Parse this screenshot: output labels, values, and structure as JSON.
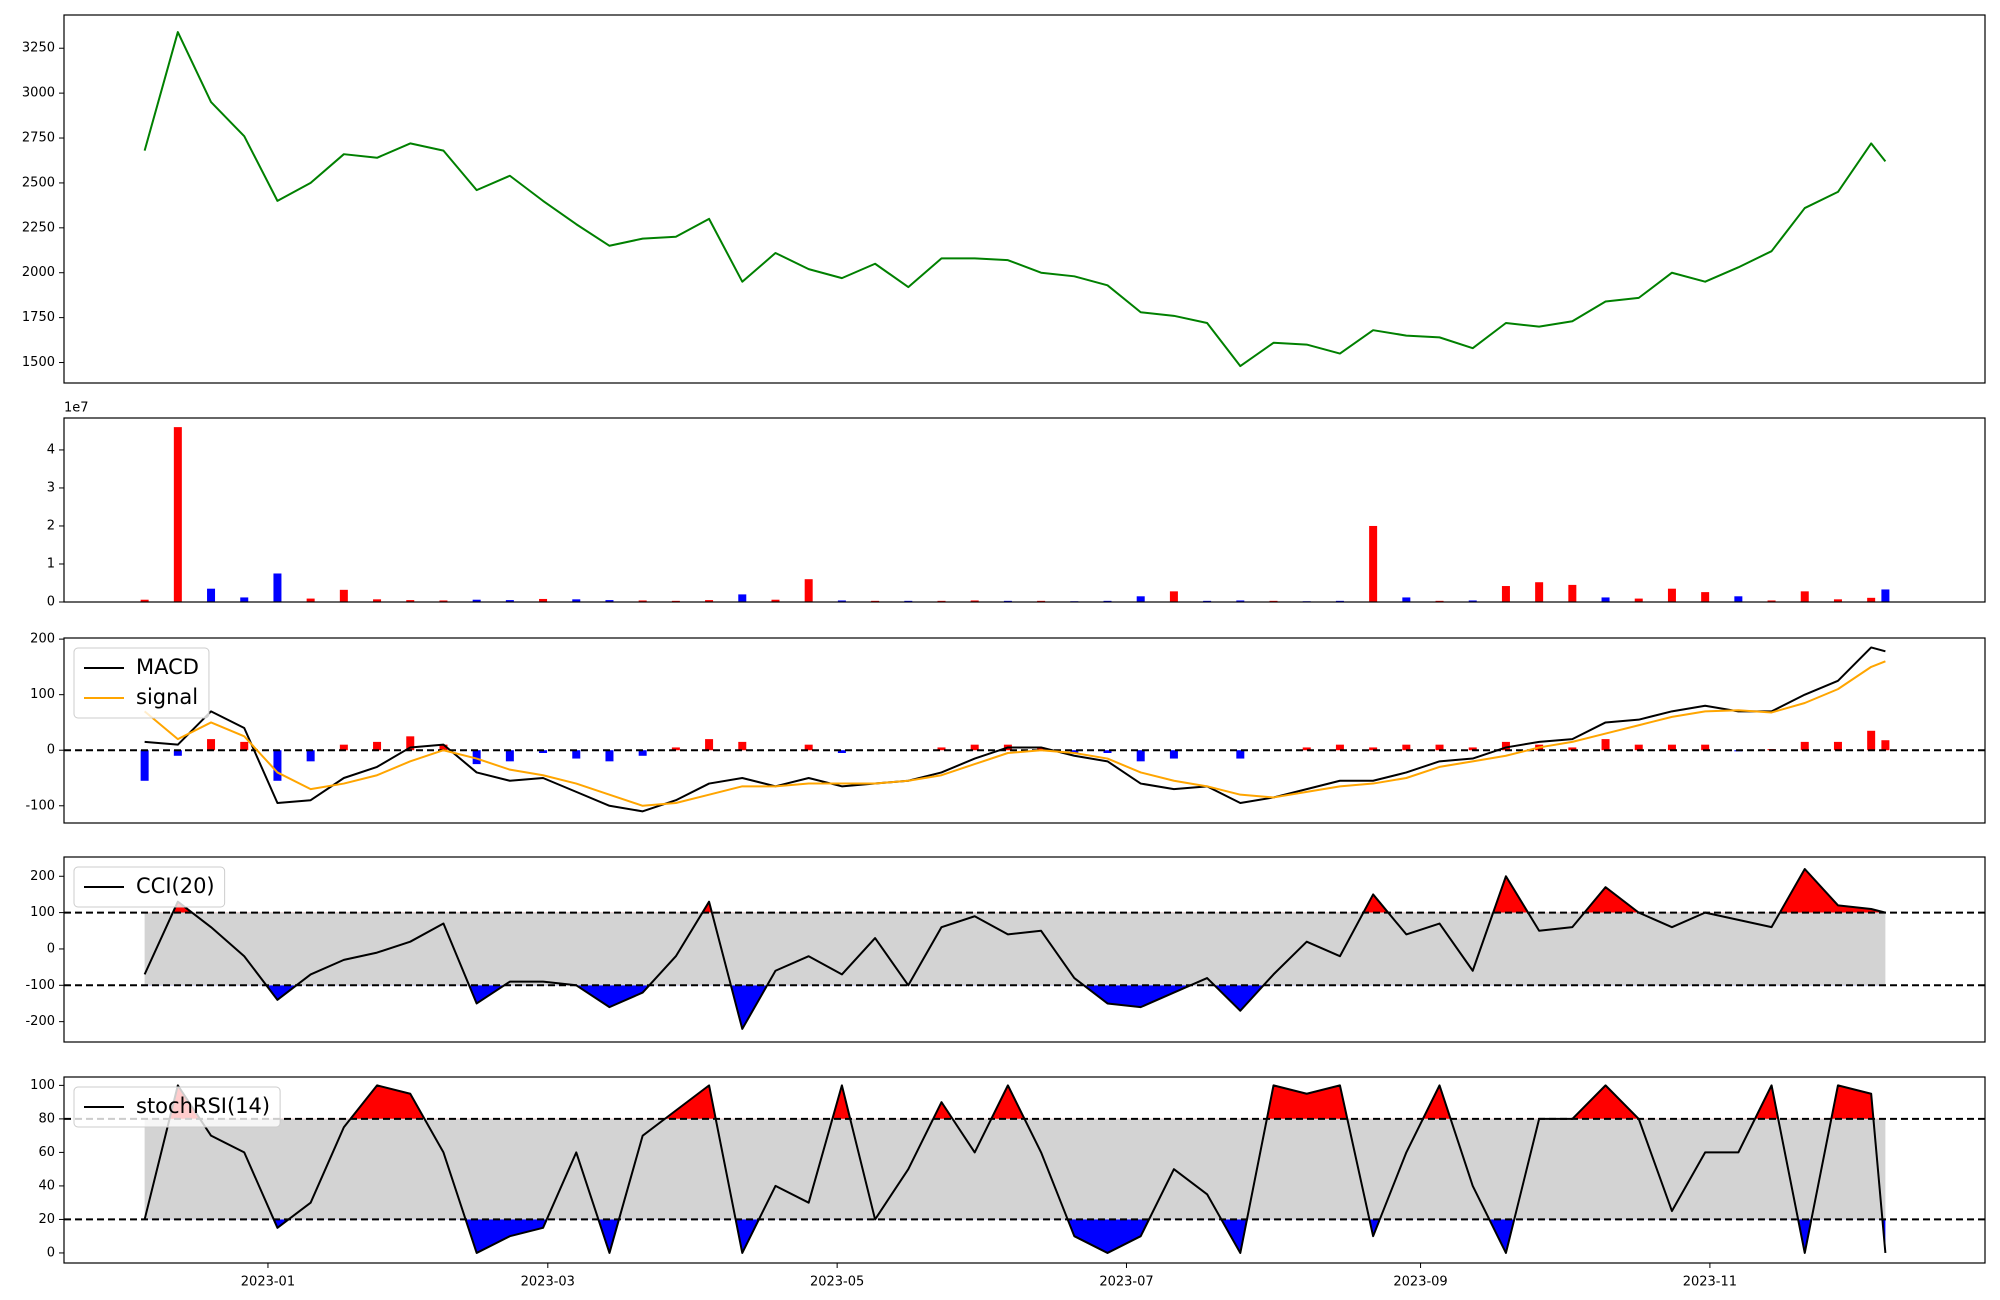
{
  "chart_data": [
    {
      "type": "line",
      "color": "#008000",
      "x": [
        "2022-12-06",
        "2022-12-13",
        "2022-12-20",
        "2022-12-27",
        "2023-01-03",
        "2023-01-10",
        "2023-01-17",
        "2023-01-24",
        "2023-01-31",
        "2023-02-07",
        "2023-02-14",
        "2023-02-21",
        "2023-02-28",
        "2023-03-07",
        "2023-03-14",
        "2023-03-21",
        "2023-03-28",
        "2023-04-04",
        "2023-04-11",
        "2023-04-18",
        "2023-04-25",
        "2023-05-02",
        "2023-05-09",
        "2023-05-16",
        "2023-05-23",
        "2023-05-30",
        "2023-06-06",
        "2023-06-13",
        "2023-06-20",
        "2023-06-27",
        "2023-07-04",
        "2023-07-11",
        "2023-07-18",
        "2023-07-25",
        "2023-08-01",
        "2023-08-08",
        "2023-08-15",
        "2023-08-22",
        "2023-08-29",
        "2023-09-05",
        "2023-09-12",
        "2023-09-19",
        "2023-09-26",
        "2023-10-03",
        "2023-10-10",
        "2023-10-17",
        "2023-10-24",
        "2023-10-31",
        "2023-11-07",
        "2023-11-14",
        "2023-11-21",
        "2023-11-28",
        "2023-12-05",
        "2023-12-08"
      ],
      "values": [
        2680,
        3340,
        2950,
        2760,
        2400,
        2500,
        2660,
        2640,
        2720,
        2680,
        2460,
        2540,
        2400,
        2270,
        2150,
        2190,
        2200,
        2300,
        1950,
        2110,
        2020,
        1970,
        2050,
        1920,
        2080,
        2080,
        2070,
        2000,
        1980,
        1930,
        1780,
        1760,
        1720,
        1480,
        1610,
        1600,
        1550,
        1680,
        1650,
        1640,
        1580,
        1720,
        1700,
        1730,
        1840,
        1860,
        2000,
        1950,
        2030,
        2120,
        2360,
        2450,
        2720,
        2620
      ],
      "xlim": [
        "2022-11-19",
        "2023-12-29"
      ],
      "ylim": [
        1386,
        3435
      ],
      "yticks": [
        1500,
        1750,
        2000,
        2250,
        2500,
        2750,
        3000,
        3250
      ]
    },
    {
      "type": "bar",
      "offset_label": "1e7",
      "x": [
        "2022-12-06",
        "2022-12-13",
        "2022-12-20",
        "2022-12-27",
        "2023-01-03",
        "2023-01-10",
        "2023-01-17",
        "2023-01-24",
        "2023-01-31",
        "2023-02-07",
        "2023-02-14",
        "2023-02-21",
        "2023-02-28",
        "2023-03-07",
        "2023-03-14",
        "2023-03-21",
        "2023-03-28",
        "2023-04-04",
        "2023-04-11",
        "2023-04-18",
        "2023-04-25",
        "2023-05-02",
        "2023-05-09",
        "2023-05-16",
        "2023-05-23",
        "2023-05-30",
        "2023-06-06",
        "2023-06-13",
        "2023-06-20",
        "2023-06-27",
        "2023-07-04",
        "2023-07-11",
        "2023-07-18",
        "2023-07-25",
        "2023-08-01",
        "2023-08-08",
        "2023-08-15",
        "2023-08-22",
        "2023-08-29",
        "2023-09-05",
        "2023-09-12",
        "2023-09-19",
        "2023-09-26",
        "2023-10-03",
        "2023-10-10",
        "2023-10-17",
        "2023-10-24",
        "2023-10-31",
        "2023-11-07",
        "2023-11-14",
        "2023-11-21",
        "2023-11-28",
        "2023-12-05",
        "2023-12-08"
      ],
      "values": [
        600000,
        46000000,
        3500000,
        1200000,
        7500000,
        900000,
        3200000,
        700000,
        500000,
        400000,
        600000,
        500000,
        800000,
        700000,
        500000,
        400000,
        300000,
        500000,
        2000000,
        600000,
        6000000,
        400000,
        300000,
        300000,
        300000,
        400000,
        300000,
        300000,
        200000,
        300000,
        1500000,
        2800000,
        300000,
        400000,
        300000,
        200000,
        300000,
        20000000,
        1200000,
        300000,
        400000,
        4200000,
        5200000,
        4500000,
        1200000,
        900000,
        3500000,
        2600000,
        1500000,
        400000,
        2800000,
        700000,
        1100000,
        3300000
      ],
      "colors": [
        "#ff0000",
        "#ff0000",
        "#0000ff",
        "#0000ff",
        "#0000ff",
        "#ff0000",
        "#ff0000",
        "#ff0000",
        "#ff0000",
        "#ff0000",
        "#0000ff",
        "#0000ff",
        "#ff0000",
        "#0000ff",
        "#0000ff",
        "#ff0000",
        "#ff0000",
        "#ff0000",
        "#0000ff",
        "#ff0000",
        "#ff0000",
        "#0000ff",
        "#ff0000",
        "#0000ff",
        "#ff0000",
        "#ff0000",
        "#0000ff",
        "#ff0000",
        "#0000ff",
        "#0000ff",
        "#0000ff",
        "#ff0000",
        "#0000ff",
        "#0000ff",
        "#ff0000",
        "#0000ff",
        "#0000ff",
        "#ff0000",
        "#0000ff",
        "#ff0000",
        "#0000ff",
        "#ff0000",
        "#ff0000",
        "#ff0000",
        "#0000ff",
        "#ff0000",
        "#ff0000",
        "#ff0000",
        "#0000ff",
        "#ff0000",
        "#ff0000",
        "#ff0000",
        "#ff0000",
        "#0000ff"
      ],
      "xlim": [
        "2022-11-19",
        "2023-12-29"
      ],
      "ylim": [
        0,
        48400000
      ],
      "yticks": [
        {
          "value": 0,
          "label": "0"
        },
        {
          "value": 10000000,
          "label": "1"
        },
        {
          "value": 20000000,
          "label": "2"
        },
        {
          "value": 30000000,
          "label": "3"
        },
        {
          "value": 40000000,
          "label": "4"
        }
      ]
    },
    {
      "type": "line",
      "legend": "upper left",
      "x": [
        "2022-12-06",
        "2022-12-13",
        "2022-12-20",
        "2022-12-27",
        "2023-01-03",
        "2023-01-10",
        "2023-01-17",
        "2023-01-24",
        "2023-01-31",
        "2023-02-07",
        "2023-02-14",
        "2023-02-21",
        "2023-02-28",
        "2023-03-07",
        "2023-03-14",
        "2023-03-21",
        "2023-03-28",
        "2023-04-04",
        "2023-04-11",
        "2023-04-18",
        "2023-04-25",
        "2023-05-02",
        "2023-05-09",
        "2023-05-16",
        "2023-05-23",
        "2023-05-30",
        "2023-06-06",
        "2023-06-13",
        "2023-06-20",
        "2023-06-27",
        "2023-07-04",
        "2023-07-11",
        "2023-07-18",
        "2023-07-25",
        "2023-08-01",
        "2023-08-08",
        "2023-08-15",
        "2023-08-22",
        "2023-08-29",
        "2023-09-05",
        "2023-09-12",
        "2023-09-19",
        "2023-09-26",
        "2023-10-03",
        "2023-10-10",
        "2023-10-17",
        "2023-10-24",
        "2023-10-31",
        "2023-11-07",
        "2023-11-14",
        "2023-11-21",
        "2023-11-28",
        "2023-12-05",
        "2023-12-08"
      ],
      "series": [
        {
          "name": "MACD",
          "color": "#000000",
          "values": [
            15,
            10,
            70,
            40,
            -95,
            -90,
            -50,
            -30,
            5,
            10,
            -40,
            -55,
            -50,
            -75,
            -100,
            -110,
            -90,
            -60,
            -50,
            -65,
            -50,
            -65,
            -60,
            -55,
            -40,
            -15,
            5,
            5,
            -10,
            -20,
            -60,
            -70,
            -65,
            -95,
            -85,
            -70,
            -55,
            -55,
            -40,
            -20,
            -15,
            5,
            15,
            20,
            50,
            55,
            70,
            80,
            70,
            70,
            100,
            125,
            185,
            178
          ]
        },
        {
          "name": "signal",
          "color": "#ffa500",
          "values": [
            70,
            20,
            50,
            25,
            -40,
            -70,
            -60,
            -45,
            -20,
            0,
            -15,
            -35,
            -45,
            -60,
            -80,
            -100,
            -95,
            -80,
            -65,
            -65,
            -60,
            -60,
            -60,
            -55,
            -45,
            -25,
            -5,
            0,
            -5,
            -15,
            -40,
            -55,
            -65,
            -80,
            -85,
            -75,
            -65,
            -60,
            -50,
            -30,
            -20,
            -10,
            5,
            15,
            30,
            45,
            60,
            70,
            72,
            68,
            85,
            110,
            150,
            160
          ]
        }
      ],
      "histogram": {
        "positive_color": "#ff0000",
        "negative_color": "#0000ff",
        "values": [
          -55,
          -10,
          20,
          15,
          -55,
          -20,
          10,
          15,
          25,
          10,
          -25,
          -20,
          -5,
          -15,
          -20,
          -10,
          5,
          20,
          15,
          0,
          10,
          -5,
          0,
          0,
          5,
          10,
          10,
          5,
          -5,
          -5,
          -20,
          -15,
          0,
          -15,
          0,
          5,
          10,
          5,
          10,
          10,
          5,
          15,
          10,
          5,
          20,
          10,
          10,
          10,
          -2,
          2,
          15,
          15,
          35,
          18
        ]
      },
      "thresholds": [
        0
      ],
      "xlim": [
        "2022-11-19",
        "2023-12-29"
      ],
      "ylim": [
        -131,
        202
      ],
      "yticks": [
        -100,
        0,
        100,
        200
      ]
    },
    {
      "type": "line",
      "legend": "upper left",
      "x": [
        "2022-12-06",
        "2022-12-13",
        "2022-12-20",
        "2022-12-27",
        "2023-01-03",
        "2023-01-10",
        "2023-01-17",
        "2023-01-24",
        "2023-01-31",
        "2023-02-07",
        "2023-02-14",
        "2023-02-21",
        "2023-02-28",
        "2023-03-07",
        "2023-03-14",
        "2023-03-21",
        "2023-03-28",
        "2023-04-04",
        "2023-04-11",
        "2023-04-18",
        "2023-04-25",
        "2023-05-02",
        "2023-05-09",
        "2023-05-16",
        "2023-05-23",
        "2023-05-30",
        "2023-06-06",
        "2023-06-13",
        "2023-06-20",
        "2023-06-27",
        "2023-07-04",
        "2023-07-11",
        "2023-07-18",
        "2023-07-25",
        "2023-08-01",
        "2023-08-08",
        "2023-08-15",
        "2023-08-22",
        "2023-08-29",
        "2023-09-05",
        "2023-09-12",
        "2023-09-19",
        "2023-09-26",
        "2023-10-03",
        "2023-10-10",
        "2023-10-17",
        "2023-10-24",
        "2023-10-31",
        "2023-11-07",
        "2023-11-14",
        "2023-11-21",
        "2023-11-28",
        "2023-12-05",
        "2023-12-08"
      ],
      "series": [
        {
          "name": "CCI(20)",
          "color": "#000000",
          "values": [
            -70,
            130,
            60,
            -20,
            -140,
            -70,
            -30,
            -10,
            20,
            70,
            -150,
            -90,
            -90,
            -100,
            -160,
            -120,
            -20,
            130,
            -220,
            -60,
            -20,
            -70,
            30,
            -100,
            60,
            90,
            40,
            50,
            -80,
            -150,
            -160,
            -120,
            -80,
            -170,
            -70,
            20,
            -20,
            150,
            40,
            70,
            -60,
            200,
            50,
            60,
            170,
            100,
            60,
            100,
            80,
            60,
            220,
            120,
            110,
            100
          ]
        }
      ],
      "thresholds": [
        -100,
        100
      ],
      "band_color": "#d3d3d3",
      "above_color": "#ff0000",
      "below_color": "#0000ff",
      "xlim": [
        "2022-11-19",
        "2023-12-29"
      ],
      "ylim": [
        -256,
        253
      ],
      "yticks": [
        -200,
        -100,
        0,
        100,
        200
      ]
    },
    {
      "type": "line",
      "legend": "upper left",
      "x": [
        "2022-12-06",
        "2022-12-13",
        "2022-12-20",
        "2022-12-27",
        "2023-01-03",
        "2023-01-10",
        "2023-01-17",
        "2023-01-24",
        "2023-01-31",
        "2023-02-07",
        "2023-02-14",
        "2023-02-21",
        "2023-02-28",
        "2023-03-07",
        "2023-03-14",
        "2023-03-21",
        "2023-03-28",
        "2023-04-04",
        "2023-04-11",
        "2023-04-18",
        "2023-04-25",
        "2023-05-02",
        "2023-05-09",
        "2023-05-16",
        "2023-05-23",
        "2023-05-30",
        "2023-06-06",
        "2023-06-13",
        "2023-06-20",
        "2023-06-27",
        "2023-07-04",
        "2023-07-11",
        "2023-07-18",
        "2023-07-25",
        "2023-08-01",
        "2023-08-08",
        "2023-08-15",
        "2023-08-22",
        "2023-08-29",
        "2023-09-05",
        "2023-09-12",
        "2023-09-19",
        "2023-09-26",
        "2023-10-03",
        "2023-10-10",
        "2023-10-17",
        "2023-10-24",
        "2023-10-31",
        "2023-11-07",
        "2023-11-14",
        "2023-11-21",
        "2023-11-28",
        "2023-12-05",
        "2023-12-08"
      ],
      "series": [
        {
          "name": "stochRSI(14)",
          "color": "#000000",
          "values": [
            20,
            100,
            70,
            60,
            15,
            30,
            75,
            100,
            95,
            60,
            0,
            10,
            15,
            60,
            0,
            70,
            85,
            100,
            0,
            40,
            30,
            100,
            20,
            50,
            90,
            60,
            100,
            60,
            10,
            0,
            10,
            50,
            35,
            0,
            100,
            95,
            100,
            10,
            60,
            100,
            40,
            0,
            80,
            80,
            100,
            80,
            25,
            60,
            60,
            100,
            0,
            100,
            95,
            0
          ]
        }
      ],
      "thresholds": [
        20,
        80
      ],
      "band_color": "#d3d3d3",
      "above_color": "#ff0000",
      "below_color": "#0000ff",
      "xlim": [
        "2022-11-19",
        "2023-12-29"
      ],
      "ylim": [
        -6,
        105
      ],
      "yticks": [
        0,
        20,
        40,
        60,
        80,
        100
      ],
      "xticks": [
        {
          "value": "2023-01-01",
          "label": "2023-01"
        },
        {
          "value": "2023-03-01",
          "label": "2023-03"
        },
        {
          "value": "2023-05-01",
          "label": "2023-05"
        },
        {
          "value": "2023-07-01",
          "label": "2023-07"
        },
        {
          "value": "2023-09-01",
          "label": "2023-09"
        },
        {
          "value": "2023-11-01",
          "label": "2023-11"
        }
      ]
    }
  ]
}
